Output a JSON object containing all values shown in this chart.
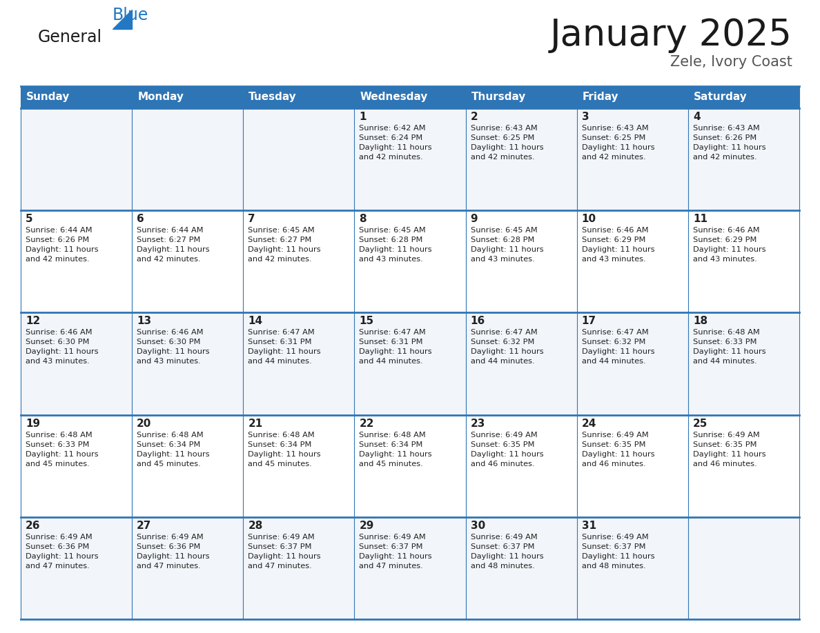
{
  "title": "January 2025",
  "subtitle": "Zele, Ivory Coast",
  "header_color": "#2e75b6",
  "header_text_color": "#ffffff",
  "cell_bg_light": "#f2f5f9",
  "cell_bg_white": "#ffffff",
  "cell_text_color": "#222222",
  "border_color": "#2e75b6",
  "border_color_light": "#a0b8d0",
  "days_of_week": [
    "Sunday",
    "Monday",
    "Tuesday",
    "Wednesday",
    "Thursday",
    "Friday",
    "Saturday"
  ],
  "weeks": [
    [
      {
        "day": "",
        "sunrise": "",
        "sunset": "",
        "daylight": ""
      },
      {
        "day": "",
        "sunrise": "",
        "sunset": "",
        "daylight": ""
      },
      {
        "day": "",
        "sunrise": "",
        "sunset": "",
        "daylight": ""
      },
      {
        "day": "1",
        "sunrise": "6:42 AM",
        "sunset": "6:24 PM",
        "daylight": "11 hours\nand 42 minutes."
      },
      {
        "day": "2",
        "sunrise": "6:43 AM",
        "sunset": "6:25 PM",
        "daylight": "11 hours\nand 42 minutes."
      },
      {
        "day": "3",
        "sunrise": "6:43 AM",
        "sunset": "6:25 PM",
        "daylight": "11 hours\nand 42 minutes."
      },
      {
        "day": "4",
        "sunrise": "6:43 AM",
        "sunset": "6:26 PM",
        "daylight": "11 hours\nand 42 minutes."
      }
    ],
    [
      {
        "day": "5",
        "sunrise": "6:44 AM",
        "sunset": "6:26 PM",
        "daylight": "11 hours\nand 42 minutes."
      },
      {
        "day": "6",
        "sunrise": "6:44 AM",
        "sunset": "6:27 PM",
        "daylight": "11 hours\nand 42 minutes."
      },
      {
        "day": "7",
        "sunrise": "6:45 AM",
        "sunset": "6:27 PM",
        "daylight": "11 hours\nand 42 minutes."
      },
      {
        "day": "8",
        "sunrise": "6:45 AM",
        "sunset": "6:28 PM",
        "daylight": "11 hours\nand 43 minutes."
      },
      {
        "day": "9",
        "sunrise": "6:45 AM",
        "sunset": "6:28 PM",
        "daylight": "11 hours\nand 43 minutes."
      },
      {
        "day": "10",
        "sunrise": "6:46 AM",
        "sunset": "6:29 PM",
        "daylight": "11 hours\nand 43 minutes."
      },
      {
        "day": "11",
        "sunrise": "6:46 AM",
        "sunset": "6:29 PM",
        "daylight": "11 hours\nand 43 minutes."
      }
    ],
    [
      {
        "day": "12",
        "sunrise": "6:46 AM",
        "sunset": "6:30 PM",
        "daylight": "11 hours\nand 43 minutes."
      },
      {
        "day": "13",
        "sunrise": "6:46 AM",
        "sunset": "6:30 PM",
        "daylight": "11 hours\nand 43 minutes."
      },
      {
        "day": "14",
        "sunrise": "6:47 AM",
        "sunset": "6:31 PM",
        "daylight": "11 hours\nand 44 minutes."
      },
      {
        "day": "15",
        "sunrise": "6:47 AM",
        "sunset": "6:31 PM",
        "daylight": "11 hours\nand 44 minutes."
      },
      {
        "day": "16",
        "sunrise": "6:47 AM",
        "sunset": "6:32 PM",
        "daylight": "11 hours\nand 44 minutes."
      },
      {
        "day": "17",
        "sunrise": "6:47 AM",
        "sunset": "6:32 PM",
        "daylight": "11 hours\nand 44 minutes."
      },
      {
        "day": "18",
        "sunrise": "6:48 AM",
        "sunset": "6:33 PM",
        "daylight": "11 hours\nand 44 minutes."
      }
    ],
    [
      {
        "day": "19",
        "sunrise": "6:48 AM",
        "sunset": "6:33 PM",
        "daylight": "11 hours\nand 45 minutes."
      },
      {
        "day": "20",
        "sunrise": "6:48 AM",
        "sunset": "6:34 PM",
        "daylight": "11 hours\nand 45 minutes."
      },
      {
        "day": "21",
        "sunrise": "6:48 AM",
        "sunset": "6:34 PM",
        "daylight": "11 hours\nand 45 minutes."
      },
      {
        "day": "22",
        "sunrise": "6:48 AM",
        "sunset": "6:34 PM",
        "daylight": "11 hours\nand 45 minutes."
      },
      {
        "day": "23",
        "sunrise": "6:49 AM",
        "sunset": "6:35 PM",
        "daylight": "11 hours\nand 46 minutes."
      },
      {
        "day": "24",
        "sunrise": "6:49 AM",
        "sunset": "6:35 PM",
        "daylight": "11 hours\nand 46 minutes."
      },
      {
        "day": "25",
        "sunrise": "6:49 AM",
        "sunset": "6:35 PM",
        "daylight": "11 hours\nand 46 minutes."
      }
    ],
    [
      {
        "day": "26",
        "sunrise": "6:49 AM",
        "sunset": "6:36 PM",
        "daylight": "11 hours\nand 47 minutes."
      },
      {
        "day": "27",
        "sunrise": "6:49 AM",
        "sunset": "6:36 PM",
        "daylight": "11 hours\nand 47 minutes."
      },
      {
        "day": "28",
        "sunrise": "6:49 AM",
        "sunset": "6:37 PM",
        "daylight": "11 hours\nand 47 minutes."
      },
      {
        "day": "29",
        "sunrise": "6:49 AM",
        "sunset": "6:37 PM",
        "daylight": "11 hours\nand 47 minutes."
      },
      {
        "day": "30",
        "sunrise": "6:49 AM",
        "sunset": "6:37 PM",
        "daylight": "11 hours\nand 48 minutes."
      },
      {
        "day": "31",
        "sunrise": "6:49 AM",
        "sunset": "6:37 PM",
        "daylight": "11 hours\nand 48 minutes."
      },
      {
        "day": "",
        "sunrise": "",
        "sunset": "",
        "daylight": ""
      }
    ]
  ],
  "logo_text_general": "General",
  "logo_text_blue": "Blue",
  "logo_color_general": "#1a1a1a",
  "logo_color_blue": "#2278c3",
  "logo_triangle_color": "#2278c3"
}
